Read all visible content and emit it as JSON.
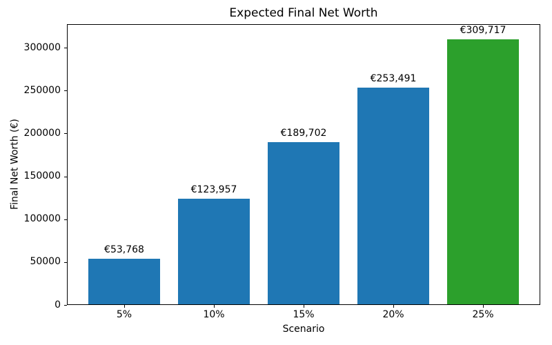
{
  "chart_data": {
    "type": "bar",
    "title": "Expected Final Net Worth",
    "xlabel": "Scenario",
    "ylabel": "Final Net Worth (€)",
    "categories": [
      "5%",
      "10%",
      "15%",
      "20%",
      "25%"
    ],
    "values": [
      53768,
      123957,
      189702,
      253491,
      309717
    ],
    "annotations": [
      "€53,768",
      "€123,957",
      "€189,702",
      "€253,491",
      "€309,717"
    ],
    "bar_colors": [
      "#1f77b4",
      "#1f77b4",
      "#1f77b4",
      "#1f77b4",
      "#2ca02c"
    ],
    "yticks": [
      0,
      50000,
      100000,
      150000,
      200000,
      250000,
      300000
    ],
    "ylim": [
      0,
      327400
    ],
    "grid": false,
    "legend": null
  }
}
